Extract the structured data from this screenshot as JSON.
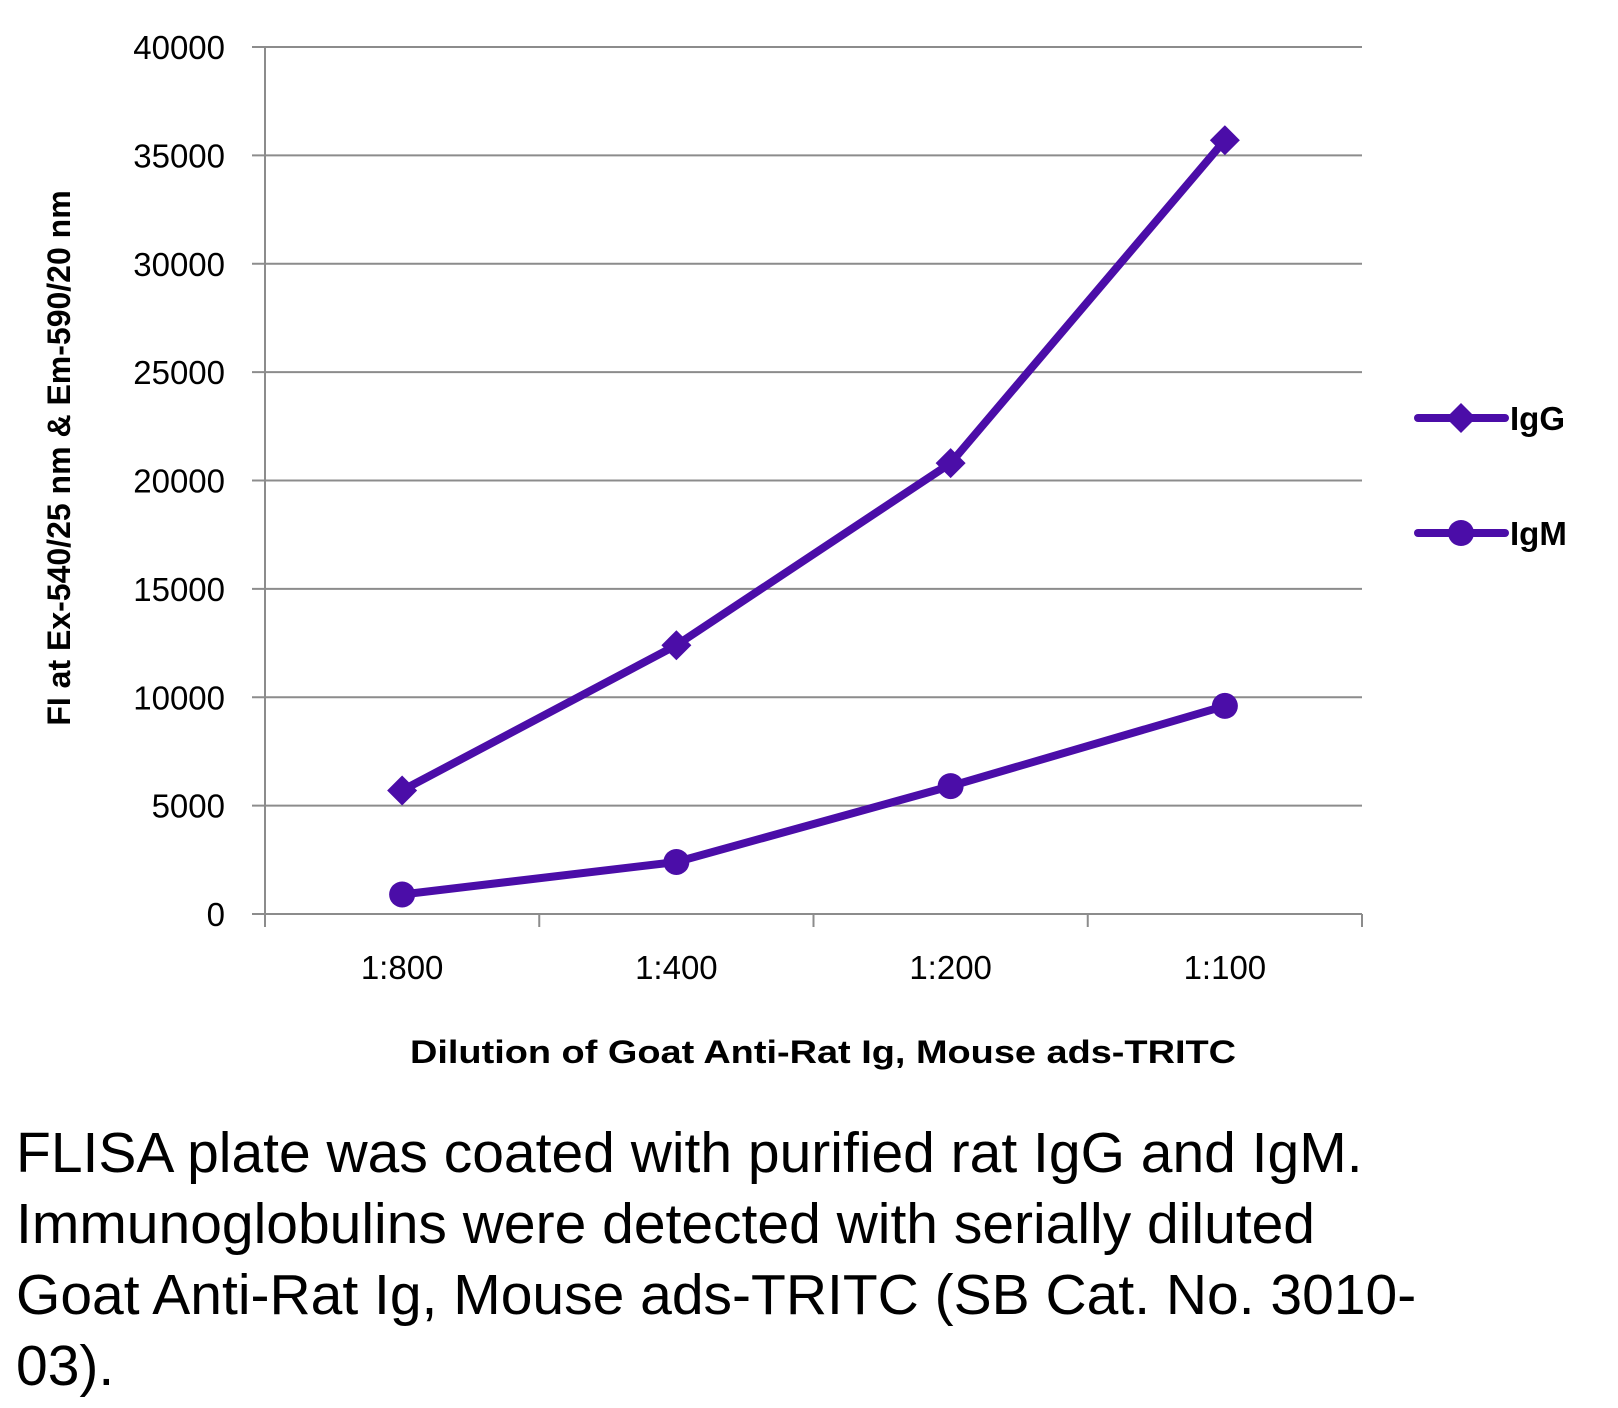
{
  "chart_data": {
    "type": "line",
    "categories": [
      "1:800",
      "1:400",
      "1:200",
      "1:100"
    ],
    "series": [
      {
        "name": "IgG",
        "marker": "diamond",
        "color": "#4B0DA8",
        "values": [
          5700,
          12400,
          20800,
          35700
        ]
      },
      {
        "name": "IgM",
        "marker": "circle",
        "color": "#4B0DA8",
        "values": [
          900,
          2400,
          5900,
          9600
        ]
      }
    ],
    "ylim": [
      0,
      40000
    ],
    "yticks": [
      "0",
      "5000",
      "10000",
      "15000",
      "20000",
      "25000",
      "30000",
      "35000",
      "40000"
    ],
    "ylabel": "FI at Ex-540/25 nm & Em-590/20 nm",
    "xlabel": "Dilution of Goat Anti-Rat Ig, Mouse ads-TRITC",
    "grid": true,
    "legend_position": "right"
  },
  "caption": "FLISA plate was coated with purified rat IgG and IgM.  Immunoglobulins were detected with serially diluted Goat Anti-Rat Ig, Mouse ads-TRITC (SB Cat. No. 3010-03)."
}
